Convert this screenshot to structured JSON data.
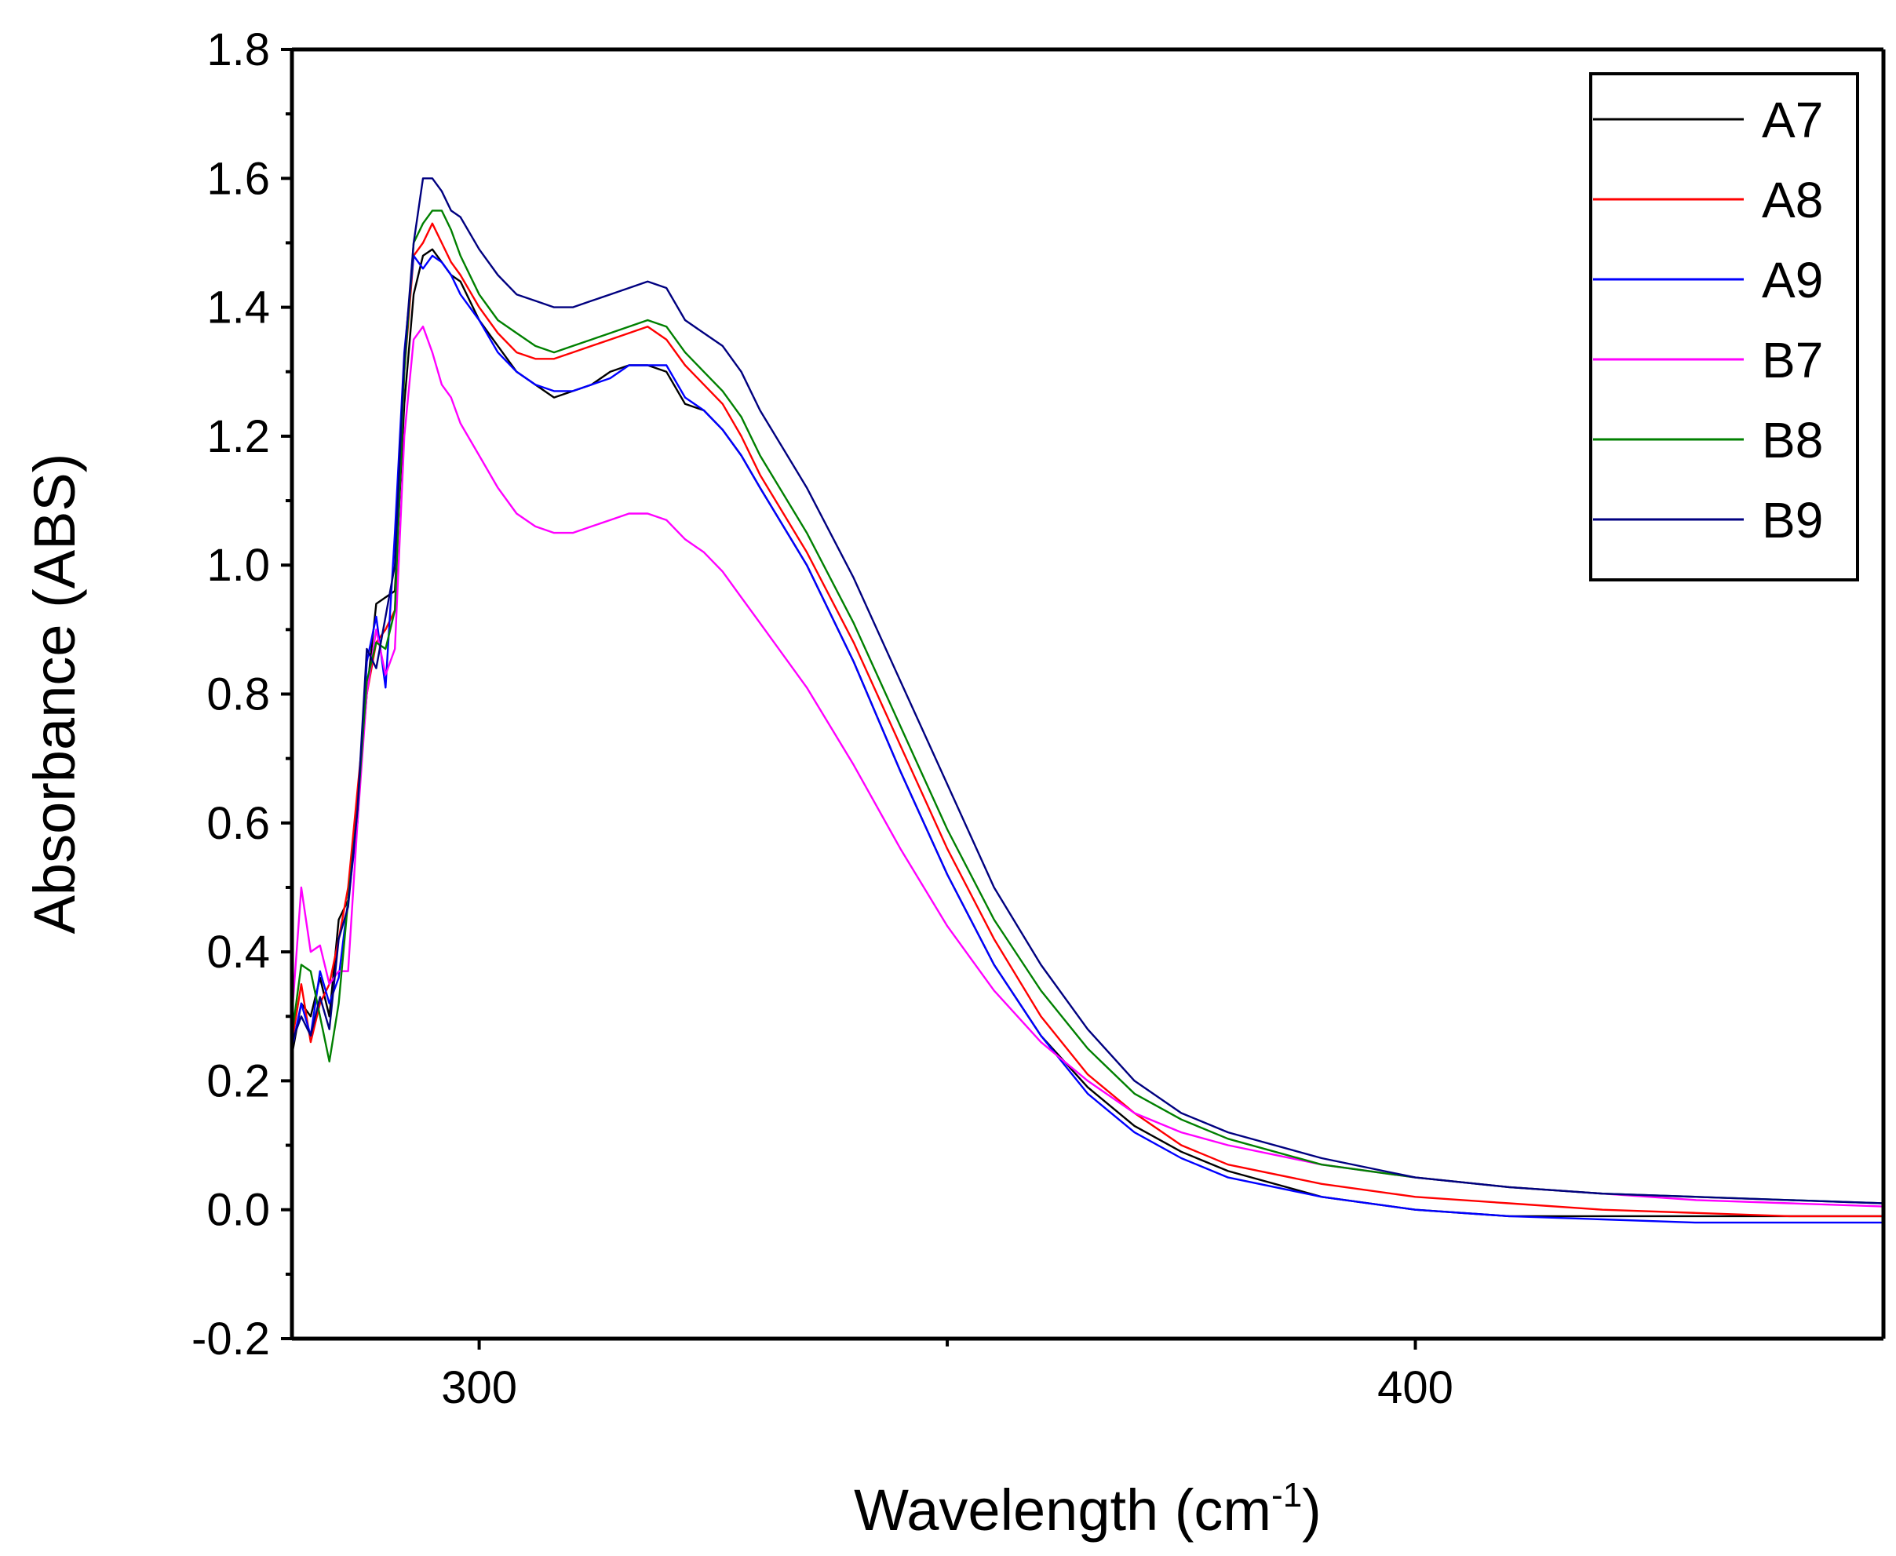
{
  "chart_data": {
    "type": "line",
    "title": "",
    "xlabel": "Wavelength (cm",
    "xlabel_sup": "-1",
    "xlabel_close": ")",
    "ylabel": "Absorbance (ABS)",
    "xlim": [
      280,
      450
    ],
    "ylim": [
      -0.2,
      1.8
    ],
    "x_ticks": [
      300,
      400
    ],
    "x_tick_labels": [
      "300",
      "400"
    ],
    "x_minor_ticks": [
      350
    ],
    "y_ticks": [
      -0.2,
      0.0,
      0.2,
      0.4,
      0.6,
      0.8,
      1.0,
      1.2,
      1.4,
      1.6,
      1.8
    ],
    "y_tick_labels": [
      "-0.2",
      "0.0",
      "0.2",
      "0.4",
      "0.6",
      "0.8",
      "1.0",
      "1.2",
      "1.4",
      "1.6",
      "1.8"
    ],
    "grid": false,
    "legend_position": "top-right",
    "series": [
      {
        "name": "A7",
        "color": "#000000",
        "x": [
          280,
          281,
          282,
          283,
          284,
          285,
          286,
          287,
          288,
          289,
          290,
          291,
          292,
          293,
          294,
          295,
          296,
          297,
          298,
          300,
          302,
          304,
          306,
          308,
          310,
          312,
          314,
          316,
          318,
          320,
          322,
          324,
          326,
          328,
          330,
          335,
          340,
          345,
          350,
          355,
          360,
          365,
          370,
          375,
          380,
          390,
          400,
          410,
          420,
          430,
          440,
          450
        ],
        "y": [
          0.24,
          0.32,
          0.3,
          0.36,
          0.3,
          0.45,
          0.48,
          0.62,
          0.8,
          0.94,
          0.95,
          0.96,
          1.25,
          1.42,
          1.48,
          1.49,
          1.47,
          1.45,
          1.44,
          1.38,
          1.34,
          1.3,
          1.28,
          1.26,
          1.27,
          1.28,
          1.3,
          1.31,
          1.31,
          1.3,
          1.25,
          1.24,
          1.21,
          1.17,
          1.12,
          1.0,
          0.85,
          0.68,
          0.52,
          0.38,
          0.27,
          0.19,
          0.13,
          0.09,
          0.06,
          0.02,
          0.0,
          -0.01,
          -0.01,
          -0.01,
          -0.01,
          -0.01
        ]
      },
      {
        "name": "A8",
        "color": "#ff0000",
        "x": [
          280,
          281,
          282,
          283,
          284,
          285,
          286,
          287,
          288,
          289,
          290,
          291,
          292,
          293,
          294,
          295,
          296,
          297,
          298,
          300,
          302,
          304,
          306,
          308,
          310,
          312,
          314,
          316,
          318,
          320,
          322,
          324,
          326,
          328,
          330,
          335,
          340,
          345,
          350,
          355,
          360,
          365,
          370,
          375,
          380,
          390,
          400,
          410,
          420,
          430,
          440,
          450
        ],
        "y": [
          0.26,
          0.35,
          0.26,
          0.32,
          0.35,
          0.42,
          0.5,
          0.65,
          0.8,
          0.88,
          0.9,
          0.93,
          1.3,
          1.48,
          1.5,
          1.53,
          1.5,
          1.47,
          1.45,
          1.4,
          1.36,
          1.33,
          1.32,
          1.32,
          1.33,
          1.34,
          1.35,
          1.36,
          1.37,
          1.35,
          1.31,
          1.28,
          1.25,
          1.2,
          1.14,
          1.02,
          0.88,
          0.72,
          0.56,
          0.42,
          0.3,
          0.21,
          0.15,
          0.1,
          0.07,
          0.04,
          0.02,
          0.01,
          0.0,
          -0.005,
          -0.01,
          -0.01
        ]
      },
      {
        "name": "A9",
        "color": "#0000ff",
        "x": [
          280,
          281,
          282,
          283,
          284,
          285,
          286,
          287,
          288,
          289,
          290,
          291,
          292,
          293,
          294,
          295,
          296,
          297,
          298,
          300,
          302,
          304,
          306,
          308,
          310,
          312,
          314,
          316,
          318,
          320,
          322,
          324,
          326,
          328,
          330,
          335,
          340,
          345,
          350,
          355,
          360,
          365,
          370,
          375,
          380,
          390,
          400,
          410,
          420,
          430,
          440,
          450
        ],
        "y": [
          0.25,
          0.32,
          0.27,
          0.37,
          0.32,
          0.36,
          0.48,
          0.6,
          0.85,
          0.92,
          0.81,
          1.05,
          1.33,
          1.48,
          1.46,
          1.48,
          1.47,
          1.45,
          1.42,
          1.38,
          1.33,
          1.3,
          1.28,
          1.27,
          1.27,
          1.28,
          1.29,
          1.31,
          1.31,
          1.31,
          1.26,
          1.24,
          1.21,
          1.17,
          1.12,
          1.0,
          0.85,
          0.68,
          0.52,
          0.38,
          0.27,
          0.18,
          0.12,
          0.08,
          0.05,
          0.02,
          0.0,
          -0.01,
          -0.015,
          -0.02,
          -0.02,
          -0.02
        ]
      },
      {
        "name": "B7",
        "color": "#ff00ff",
        "x": [
          280,
          281,
          282,
          283,
          284,
          285,
          286,
          287,
          288,
          289,
          290,
          291,
          292,
          293,
          294,
          295,
          296,
          297,
          298,
          300,
          302,
          304,
          306,
          308,
          310,
          312,
          314,
          316,
          318,
          320,
          322,
          324,
          326,
          328,
          330,
          335,
          340,
          345,
          350,
          355,
          360,
          365,
          370,
          375,
          380,
          390,
          400,
          410,
          420,
          430,
          440,
          450
        ],
        "y": [
          0.3,
          0.5,
          0.4,
          0.41,
          0.35,
          0.37,
          0.37,
          0.6,
          0.8,
          0.9,
          0.83,
          0.87,
          1.2,
          1.35,
          1.37,
          1.33,
          1.28,
          1.26,
          1.22,
          1.17,
          1.12,
          1.08,
          1.06,
          1.05,
          1.05,
          1.06,
          1.07,
          1.08,
          1.08,
          1.07,
          1.04,
          1.02,
          0.99,
          0.95,
          0.91,
          0.81,
          0.69,
          0.56,
          0.44,
          0.34,
          0.26,
          0.2,
          0.15,
          0.12,
          0.1,
          0.07,
          0.05,
          0.035,
          0.025,
          0.015,
          0.01,
          0.005
        ]
      },
      {
        "name": "B8",
        "color": "#008000",
        "x": [
          280,
          281,
          282,
          283,
          284,
          285,
          286,
          287,
          288,
          289,
          290,
          291,
          292,
          293,
          294,
          295,
          296,
          297,
          298,
          300,
          302,
          304,
          306,
          308,
          310,
          312,
          314,
          316,
          318,
          320,
          322,
          324,
          326,
          328,
          330,
          335,
          340,
          345,
          350,
          355,
          360,
          365,
          370,
          375,
          380,
          390,
          400,
          410,
          420,
          430,
          440,
          450
        ],
        "y": [
          0.27,
          0.38,
          0.37,
          0.3,
          0.23,
          0.32,
          0.48,
          0.62,
          0.82,
          0.88,
          0.87,
          0.93,
          1.3,
          1.5,
          1.53,
          1.55,
          1.55,
          1.52,
          1.48,
          1.42,
          1.38,
          1.36,
          1.34,
          1.33,
          1.34,
          1.35,
          1.36,
          1.37,
          1.38,
          1.37,
          1.33,
          1.3,
          1.27,
          1.23,
          1.17,
          1.05,
          0.91,
          0.75,
          0.59,
          0.45,
          0.34,
          0.25,
          0.18,
          0.14,
          0.11,
          0.07,
          0.05,
          0.035,
          0.025,
          0.02,
          0.015,
          0.01
        ]
      },
      {
        "name": "B9",
        "color": "#000080",
        "x": [
          280,
          281,
          282,
          283,
          284,
          285,
          286,
          287,
          288,
          289,
          290,
          291,
          292,
          293,
          294,
          295,
          296,
          297,
          298,
          300,
          302,
          304,
          306,
          308,
          310,
          312,
          314,
          316,
          318,
          320,
          322,
          324,
          326,
          328,
          330,
          335,
          340,
          345,
          350,
          355,
          360,
          365,
          370,
          375,
          380,
          390,
          400,
          410,
          420,
          430,
          440,
          450
        ],
        "y": [
          0.26,
          0.3,
          0.27,
          0.33,
          0.28,
          0.42,
          0.47,
          0.62,
          0.87,
          0.84,
          0.92,
          1.0,
          1.32,
          1.5,
          1.6,
          1.6,
          1.58,
          1.55,
          1.54,
          1.49,
          1.45,
          1.42,
          1.41,
          1.4,
          1.4,
          1.41,
          1.42,
          1.43,
          1.44,
          1.43,
          1.38,
          1.36,
          1.34,
          1.3,
          1.24,
          1.12,
          0.98,
          0.82,
          0.66,
          0.5,
          0.38,
          0.28,
          0.2,
          0.15,
          0.12,
          0.08,
          0.05,
          0.035,
          0.025,
          0.02,
          0.015,
          0.01
        ]
      }
    ]
  }
}
